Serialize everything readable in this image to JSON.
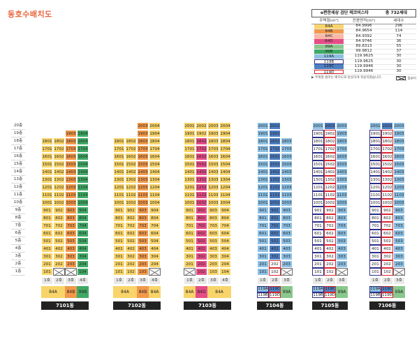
{
  "title": "동호수배치도",
  "legend": {
    "header_left": "e편한세상 검단 에코비스타",
    "header_right": "총 732세대",
    "columns": [
      "주택형(m²)",
      "전용면적(m²)",
      "세대수"
    ],
    "rows": [
      {
        "type": "84A",
        "area": "84.9996",
        "count": "296",
        "color": "#f8d46a",
        "style": "fill"
      },
      {
        "type": "84B",
        "area": "84.9654",
        "count": "114",
        "color": "#f2994a",
        "style": "fill"
      },
      {
        "type": "84C",
        "area": "84.9392",
        "count": "74",
        "color": "#f9b8a8",
        "style": "fill"
      },
      {
        "type": "84D",
        "area": "84.9746",
        "count": "36",
        "color": "#e54d86",
        "style": "fill"
      },
      {
        "type": "99A",
        "area": "89.8313",
        "count": "55",
        "color": "#89c88d",
        "style": "fill"
      },
      {
        "type": "99B",
        "area": "99.9812",
        "count": "37",
        "color": "#3faa66",
        "style": "fill"
      },
      {
        "type": "119A",
        "area": "119.9625",
        "count": "30",
        "color": "#8dc0e3",
        "style": "fill"
      },
      {
        "type": "119B",
        "area": "119.9625",
        "count": "30",
        "color": "#2d2f86",
        "style": "outline"
      },
      {
        "type": "119C",
        "area": "119.9946",
        "count": "30",
        "color": "#4d7fc2",
        "style": "fill"
      },
      {
        "type": "119D",
        "area": "119.9946",
        "count": "30",
        "color": "#d8282e",
        "style": "outline"
      }
    ],
    "note": "▶ 주택형 컬러는 배치도와 동일하게 적용하였습니다.",
    "pilotis": "필로티"
  },
  "floors": [
    "20층",
    "19층",
    "18층",
    "17층",
    "16층",
    "15층",
    "14층",
    "13층",
    "12층",
    "11층",
    "10층",
    "9층",
    "8층",
    "7층",
    "6층",
    "5층",
    "4층",
    "3층",
    "2층",
    "1층"
  ],
  "buildings": [
    {
      "name": "7101동",
      "lines": [
        "1호",
        "2호",
        "3호",
        "4호"
      ],
      "types": [
        {
          "label": "84A",
          "span": 2,
          "color": "#f8d46a"
        },
        {
          "label": "84B",
          "span": 1,
          "color": "#f2994a"
        },
        {
          "label": "99B",
          "span": 1,
          "color": "#3faa66"
        }
      ]
    },
    {
      "name": "7102동",
      "lines": [
        "1호",
        "2호",
        "3호",
        "4호"
      ],
      "types": [
        {
          "label": "84A",
          "span": 2,
          "color": "#f8d46a"
        },
        {
          "label": "84B",
          "span": 1,
          "color": "#f2994a"
        },
        {
          "label": "84A",
          "span": 1,
          "color": "#f8d46a"
        }
      ]
    },
    {
      "name": "7103동",
      "lines": [
        "1호",
        "2호",
        "3호",
        "4호"
      ],
      "types": [
        {
          "label": "84A",
          "span": 1,
          "color": "#f8d46a"
        },
        {
          "label": "84D",
          "span": 1,
          "color": "#e54d86"
        },
        {
          "label": "84A",
          "span": 2,
          "color": "#f8d46a"
        }
      ]
    },
    {
      "name": "7104동",
      "lines": [
        "1호",
        "2호",
        "3호"
      ],
      "types": [
        {
          "labels": [
            "119A",
            "119B"
          ],
          "span": 1,
          "color": "#8dc0e3"
        },
        {
          "labels": [
            "119C",
            "119D"
          ],
          "span": 1,
          "color": "#8dc0e3"
        },
        {
          "label": "99A",
          "span": 1,
          "color": "#89c88d"
        }
      ]
    },
    {
      "name": "7105동",
      "lines": [
        "1호",
        "2호",
        "3호"
      ],
      "types": [
        {
          "labels": [
            "119A",
            "119B"
          ],
          "span": 1,
          "color": "#8dc0e3"
        },
        {
          "labels": [
            "119C",
            "119D"
          ],
          "span": 1,
          "color": "#8dc0e3"
        },
        {
          "label": "99A",
          "span": 1,
          "color": "#89c88d"
        }
      ]
    },
    {
      "name": "7106동",
      "lines": [
        "1호",
        "2호",
        "3호"
      ],
      "types": [
        {
          "labels": [
            "119A",
            "119B"
          ],
          "span": 1,
          "color": "#8dc0e3"
        },
        {
          "labels": [
            "119C",
            "119D"
          ],
          "span": 1,
          "color": "#8dc0e3"
        },
        {
          "label": "99A",
          "span": 1,
          "color": "#89c88d"
        }
      ]
    }
  ]
}
